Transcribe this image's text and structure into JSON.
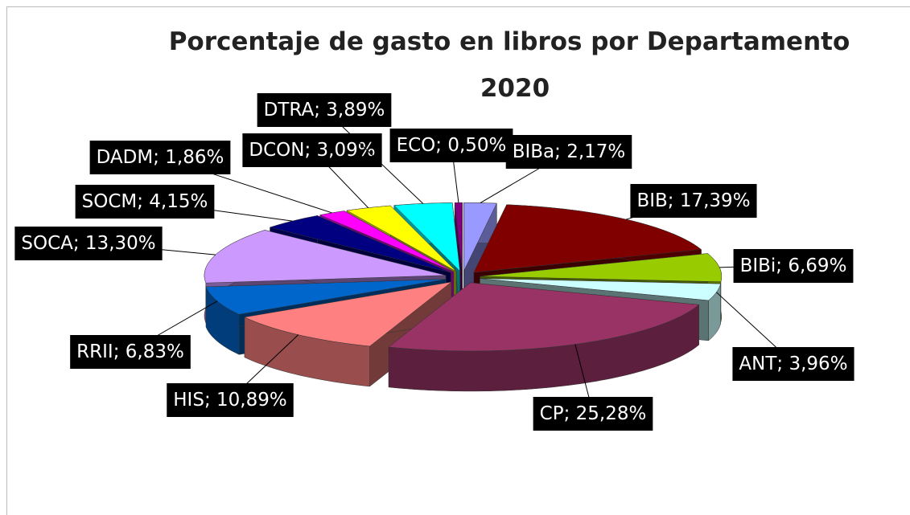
{
  "chart_data": {
    "type": "pie3d",
    "title": "Porcentaje de gasto en libros por Departamento",
    "subtitle": "2020",
    "label_separator": "; ",
    "categories": [
      "BIBa",
      "BIB",
      "BIBi",
      "ANT",
      "CP",
      "HIS",
      "RRII",
      "SOCA",
      "SOCM",
      "DADM",
      "DCON",
      "DTRA",
      "ECO"
    ],
    "values": [
      2.17,
      17.39,
      6.69,
      3.96,
      25.28,
      10.89,
      6.83,
      13.3,
      4.15,
      1.86,
      3.09,
      3.89,
      0.5
    ],
    "value_labels": [
      "2,17%",
      "17,39%",
      "6,69%",
      "3,96%",
      "25,28%",
      "10,89%",
      "6,83%",
      "13,30%",
      "4,15%",
      "1,86%",
      "3,09%",
      "3,89%",
      "0,50%"
    ],
    "colors": [
      "#9999ff",
      "#800000",
      "#99cc00",
      "#ccffff",
      "#993366",
      "#ff8080",
      "#0066cc",
      "#cc99ff",
      "#000080",
      "#ff00ff",
      "#ffff00",
      "#00ffff",
      "#800080"
    ]
  }
}
